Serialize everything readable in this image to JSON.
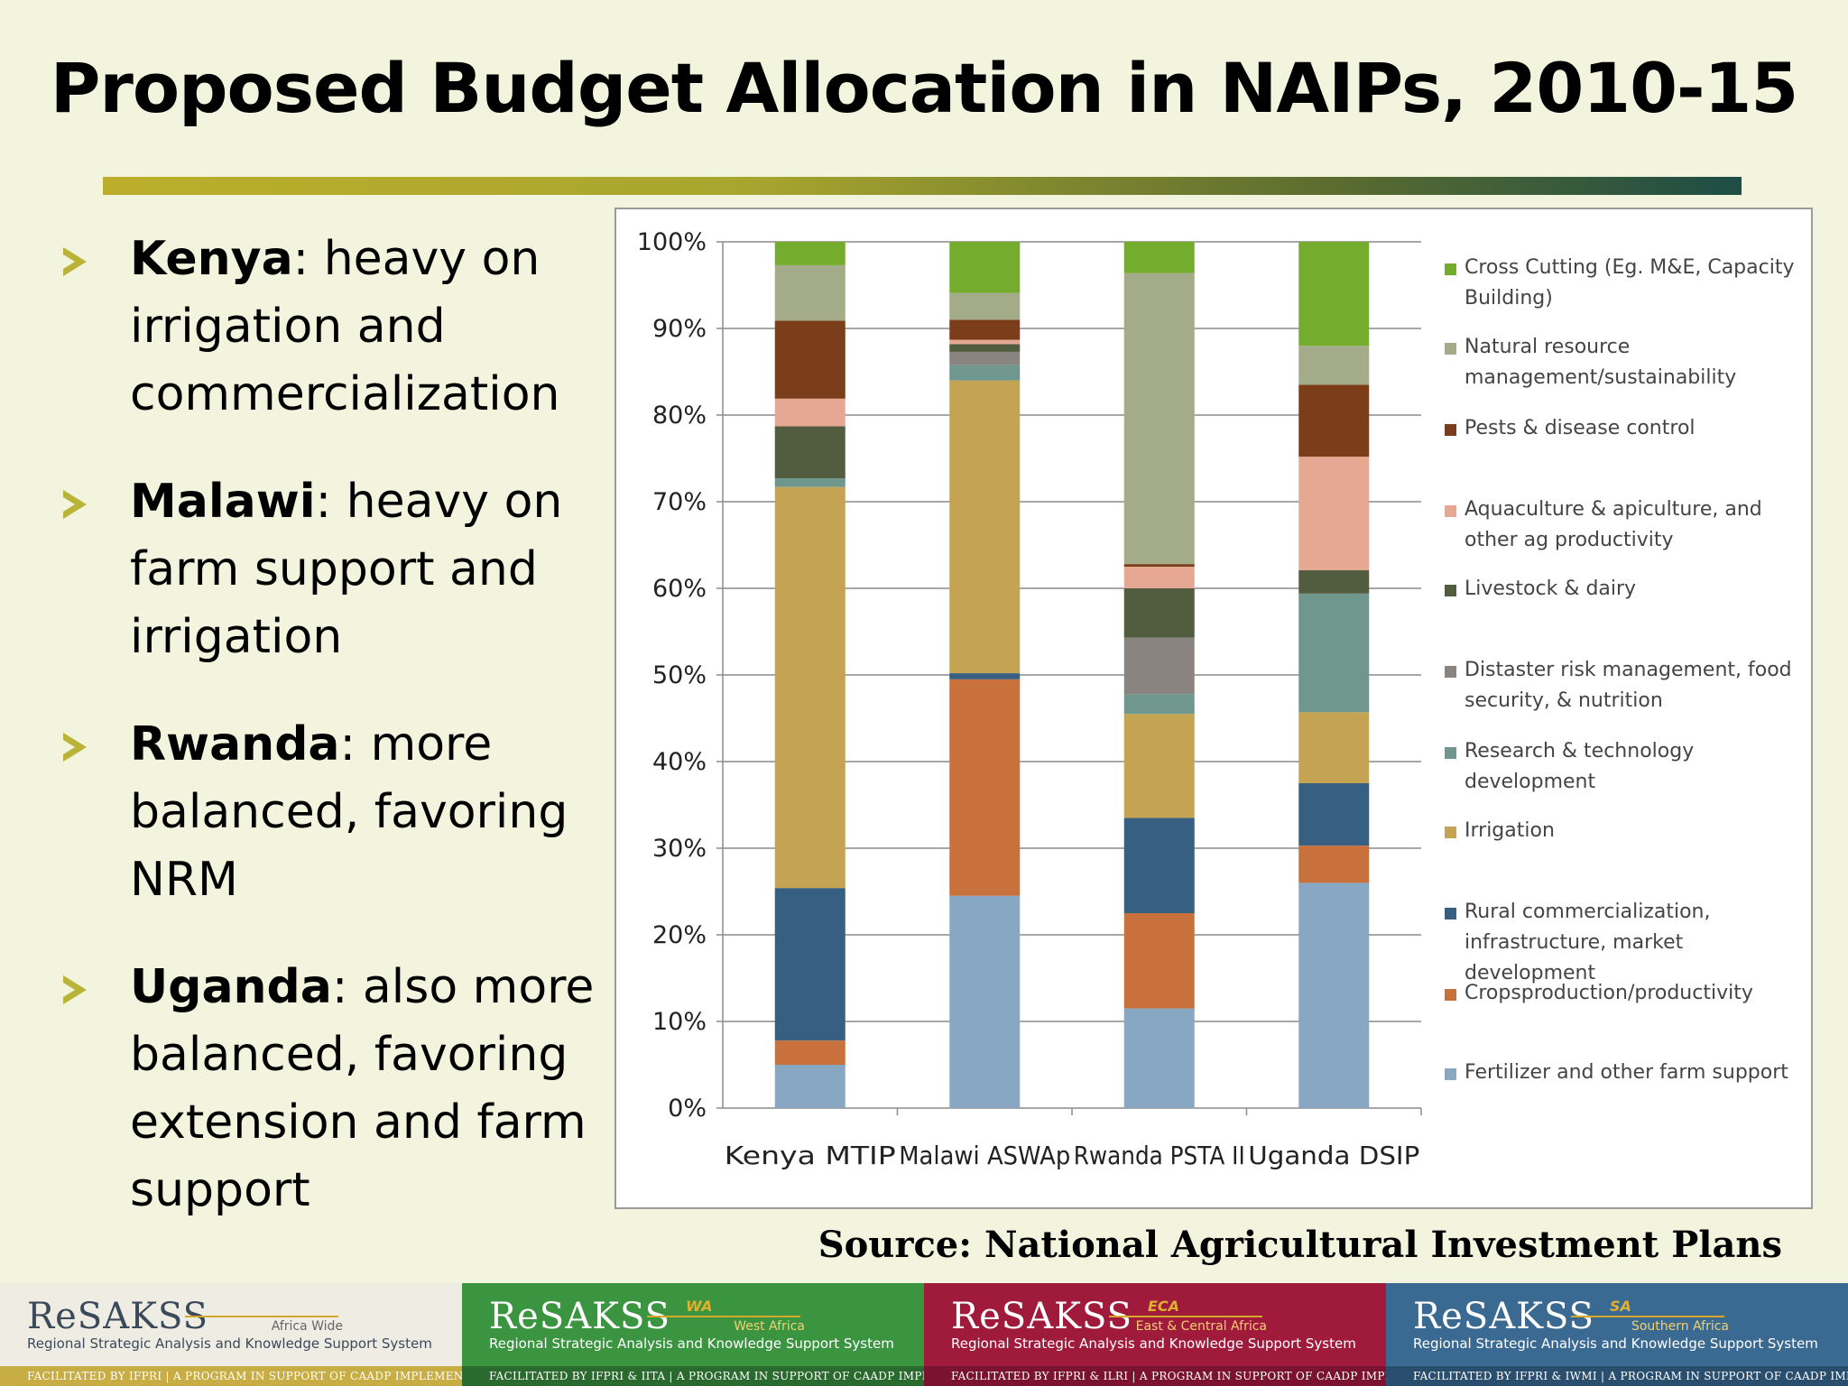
{
  "title": "Proposed Budget Allocation in NAIPs, 2010-15",
  "bullets": [
    {
      "country": "Kenya",
      "text": ": heavy on irrigation and commercialization"
    },
    {
      "country": "Malawi",
      "text": ": heavy on farm support and irrigation"
    },
    {
      "country": "Rwanda",
      "text": ": more balanced, favoring NRM"
    },
    {
      "country": "Uganda",
      "text": ": also more balanced, favoring extension and farm support"
    }
  ],
  "source": "Source: National Agricultural Investment Plans",
  "chart_data": {
    "type": "bar",
    "stacked": true,
    "categories": [
      "Kenya MTIP",
      "Malawi ASWAp",
      "Rwanda PSTA II",
      "Uganda DSIP"
    ],
    "yticks": [
      "0%",
      "10%",
      "20%",
      "30%",
      "40%",
      "50%",
      "60%",
      "70%",
      "80%",
      "90%",
      "100%"
    ],
    "ylim": [
      0,
      100
    ],
    "grid": true,
    "legend_position": "right",
    "series": [
      {
        "name": "Fertilizer and other farm support",
        "color": "#87a7c2",
        "values": [
          5,
          24.5,
          11.5,
          26
        ]
      },
      {
        "name": "Cropsproduction/productivity",
        "color": "#c8713d",
        "values": [
          2.8,
          25,
          11,
          4.3
        ]
      },
      {
        "name": "Rural commercialization, infrastructure, market development",
        "color": "#365f82",
        "values": [
          17.6,
          0.7,
          11,
          7.2
        ]
      },
      {
        "name": "Irrigation",
        "color": "#c4a352",
        "values": [
          46.3,
          33.8,
          12,
          8.2
        ]
      },
      {
        "name": "Research & technology development",
        "color": "#6f978e",
        "values": [
          1,
          1.8,
          2.3,
          13.7
        ]
      },
      {
        "name": "Distaster risk management, food security, & nutrition",
        "color": "#8a8480",
        "values": [
          0,
          1.5,
          6.5,
          0
        ]
      },
      {
        "name": "Livestock & dairy",
        "color": "#525c3e",
        "values": [
          6,
          0.9,
          5.7,
          2.7
        ]
      },
      {
        "name": "Aquaculture & apiculture, and other ag productivity",
        "color": "#e6a892",
        "values": [
          3.2,
          0.5,
          2.5,
          13.1
        ]
      },
      {
        "name": "Pests & disease control",
        "color": "#7b3d1a",
        "values": [
          9,
          2.3,
          0.3,
          8.3
        ]
      },
      {
        "name": "Natural resource management/sustainability",
        "color": "#a4ab88",
        "values": [
          6.4,
          3.1,
          33.6,
          4.5
        ]
      },
      {
        "name": "Cross Cutting (Eg. M&E, Capacity Building)",
        "color": "#74ad2e",
        "values": [
          2.7,
          5.9,
          3.6,
          12
        ]
      }
    ],
    "legend_order": [
      {
        "lines": [
          "Cross Cutting (Eg. M&E, Capacity",
          "Building)"
        ],
        "color": "#74ad2e"
      },
      {
        "lines": [
          "Natural resource",
          "management/sustainability"
        ],
        "color": "#a4ab88"
      },
      {
        "lines": [
          "Pests & disease control"
        ],
        "color": "#7b3d1a"
      },
      {
        "lines": [
          "Aquaculture & apiculture, and",
          "other ag productivity"
        ],
        "color": "#e6a892"
      },
      {
        "lines": [
          "Livestock & dairy"
        ],
        "color": "#525c3e"
      },
      {
        "lines": [
          "Distaster risk management, food",
          "security, & nutrition"
        ],
        "color": "#8a8480"
      },
      {
        "lines": [
          "Research & technology",
          "development"
        ],
        "color": "#6f978e"
      },
      {
        "lines": [
          "Irrigation"
        ],
        "color": "#c4a352"
      },
      {
        "lines": [
          "Rural commercialization,",
          "infrastructure, market development"
        ],
        "color": "#365f82"
      },
      {
        "lines": [
          "Cropsproduction/productivity"
        ],
        "color": "#c8713d"
      },
      {
        "lines": [
          "Fertilizer and other farm support"
        ],
        "color": "#87a7c2"
      }
    ]
  },
  "footer": [
    {
      "logo": "ReSAKSS",
      "sup": "",
      "region": "Africa Wide",
      "subtitle": "Regional Strategic Analysis and Knowledge Support System",
      "facilitated": "FACILITATED BY IFPRI | A PROGRAM IN SUPPORT OF CAADP IMPLEMENTATION",
      "bg": "#eeece3",
      "fg": "#3a4a5a",
      "strip": "#c7ad43"
    },
    {
      "logo": "ReSAKSS",
      "sup": "WA",
      "region": "West Africa",
      "subtitle": "Regional Strategic Analysis and Knowledge Support System",
      "facilitated": "FACILITATED BY IFPRI & IITA | A PROGRAM IN SUPPORT OF CAADP IMPLEMENTATION",
      "bg": "#3b9540",
      "fg": "#ffffff",
      "strip": "#2a6a2e"
    },
    {
      "logo": "ReSAKSS",
      "sup": "ECA",
      "region": "East & Central Africa",
      "subtitle": "Regional Strategic Analysis and Knowledge Support System",
      "facilitated": "FACILITATED BY IFPRI & ILRI | A PROGRAM IN SUPPORT OF CAADP IMPLEMENTATION",
      "bg": "#a01a3c",
      "fg": "#ffffff",
      "strip": "#7a1230"
    },
    {
      "logo": "ReSAKSS",
      "sup": "SA",
      "region": "Southern Africa",
      "subtitle": "Regional Strategic Analysis and Knowledge Support System",
      "facilitated": "FACILITATED BY IFPRI & IWMI | A PROGRAM IN SUPPORT OF CAADP IMPLEMENTATION",
      "bg": "#3a6a92",
      "fg": "#ffffff",
      "strip": "#2a4e6e"
    }
  ]
}
